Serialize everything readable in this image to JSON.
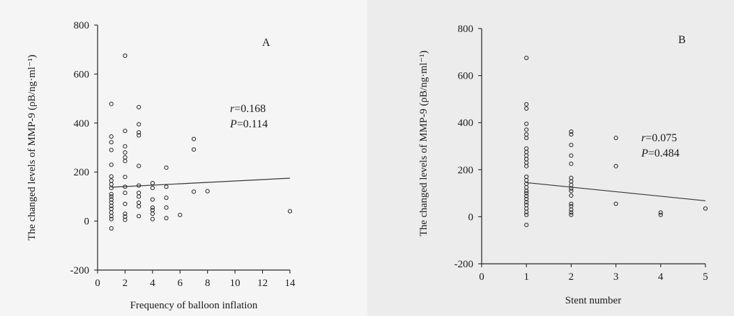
{
  "chart_data": [
    {
      "type": "scatter",
      "panel_label": "A",
      "xlabel": "Frequency of balloon inflation",
      "ylabel": "The changed levels of MMP-9 (ρB/ng·ml⁻¹)",
      "xlim": [
        0,
        14
      ],
      "ylim": [
        -200,
        800
      ],
      "xticks": [
        0,
        2,
        4,
        6,
        8,
        10,
        12,
        14
      ],
      "yticks": [
        -200,
        0,
        200,
        400,
        600,
        800
      ],
      "stats": {
        "r_label": "r",
        "r_value": "=0.168",
        "p_label": "P",
        "p_value": "=0.114"
      },
      "fit_line": {
        "x": [
          1,
          14
        ],
        "y": [
          138,
          175
        ]
      },
      "points": [
        {
          "x": 1,
          "y": 478
        },
        {
          "x": 1,
          "y": 345
        },
        {
          "x": 1,
          "y": 322
        },
        {
          "x": 1,
          "y": 290
        },
        {
          "x": 1,
          "y": 230
        },
        {
          "x": 1,
          "y": 182
        },
        {
          "x": 1,
          "y": 165
        },
        {
          "x": 1,
          "y": 150
        },
        {
          "x": 1,
          "y": 135
        },
        {
          "x": 1,
          "y": 110
        },
        {
          "x": 1,
          "y": 100
        },
        {
          "x": 1,
          "y": 88
        },
        {
          "x": 1,
          "y": 75
        },
        {
          "x": 1,
          "y": 62
        },
        {
          "x": 1,
          "y": 50
        },
        {
          "x": 1,
          "y": 35
        },
        {
          "x": 1,
          "y": 20
        },
        {
          "x": 1,
          "y": 8
        },
        {
          "x": 1,
          "y": -30
        },
        {
          "x": 2,
          "y": 675
        },
        {
          "x": 2,
          "y": 368
        },
        {
          "x": 2,
          "y": 305
        },
        {
          "x": 2,
          "y": 280
        },
        {
          "x": 2,
          "y": 260
        },
        {
          "x": 2,
          "y": 245
        },
        {
          "x": 2,
          "y": 180
        },
        {
          "x": 2,
          "y": 140
        },
        {
          "x": 2,
          "y": 115
        },
        {
          "x": 2,
          "y": 70
        },
        {
          "x": 2,
          "y": 30
        },
        {
          "x": 2,
          "y": 18
        },
        {
          "x": 2,
          "y": 5
        },
        {
          "x": 3,
          "y": 465
        },
        {
          "x": 3,
          "y": 395
        },
        {
          "x": 3,
          "y": 362
        },
        {
          "x": 3,
          "y": 350
        },
        {
          "x": 3,
          "y": 225
        },
        {
          "x": 3,
          "y": 145
        },
        {
          "x": 3,
          "y": 115
        },
        {
          "x": 3,
          "y": 100
        },
        {
          "x": 3,
          "y": 75
        },
        {
          "x": 3,
          "y": 60
        },
        {
          "x": 3,
          "y": 20
        },
        {
          "x": 4,
          "y": 155
        },
        {
          "x": 4,
          "y": 135
        },
        {
          "x": 4,
          "y": 88
        },
        {
          "x": 4,
          "y": 55
        },
        {
          "x": 4,
          "y": 45
        },
        {
          "x": 4,
          "y": 30
        },
        {
          "x": 4,
          "y": 8
        },
        {
          "x": 5,
          "y": 218
        },
        {
          "x": 5,
          "y": 140
        },
        {
          "x": 5,
          "y": 95
        },
        {
          "x": 5,
          "y": 55
        },
        {
          "x": 5,
          "y": 12
        },
        {
          "x": 6,
          "y": 25
        },
        {
          "x": 7,
          "y": 335
        },
        {
          "x": 7,
          "y": 292
        },
        {
          "x": 7,
          "y": 120
        },
        {
          "x": 8,
          "y": 122
        },
        {
          "x": 14,
          "y": 40
        }
      ]
    },
    {
      "type": "scatter",
      "panel_label": "B",
      "xlabel": "Stent number",
      "ylabel": "The changed levels of MMP-9 (ρB/ng·ml⁻¹)",
      "xlim": [
        0,
        5
      ],
      "ylim": [
        -200,
        800
      ],
      "xticks": [
        0,
        1,
        2,
        3,
        4,
        5
      ],
      "yticks": [
        -200,
        0,
        200,
        400,
        600,
        800
      ],
      "stats": {
        "r_label": "r",
        "r_value": "=0.075",
        "p_label": "P",
        "p_value": "=0.484"
      },
      "fit_line": {
        "x": [
          1,
          5
        ],
        "y": [
          145,
          68
        ]
      },
      "points": [
        {
          "x": 1,
          "y": 675
        },
        {
          "x": 1,
          "y": 478
        },
        {
          "x": 1,
          "y": 460
        },
        {
          "x": 1,
          "y": 395
        },
        {
          "x": 1,
          "y": 370
        },
        {
          "x": 1,
          "y": 350
        },
        {
          "x": 1,
          "y": 335
        },
        {
          "x": 1,
          "y": 290
        },
        {
          "x": 1,
          "y": 275
        },
        {
          "x": 1,
          "y": 260
        },
        {
          "x": 1,
          "y": 245
        },
        {
          "x": 1,
          "y": 230
        },
        {
          "x": 1,
          "y": 215
        },
        {
          "x": 1,
          "y": 170
        },
        {
          "x": 1,
          "y": 155
        },
        {
          "x": 1,
          "y": 140
        },
        {
          "x": 1,
          "y": 125
        },
        {
          "x": 1,
          "y": 110
        },
        {
          "x": 1,
          "y": 100
        },
        {
          "x": 1,
          "y": 88
        },
        {
          "x": 1,
          "y": 75
        },
        {
          "x": 1,
          "y": 62
        },
        {
          "x": 1,
          "y": 50
        },
        {
          "x": 1,
          "y": 35
        },
        {
          "x": 1,
          "y": 20
        },
        {
          "x": 1,
          "y": 8
        },
        {
          "x": 1,
          "y": -35
        },
        {
          "x": 2,
          "y": 362
        },
        {
          "x": 2,
          "y": 350
        },
        {
          "x": 2,
          "y": 305
        },
        {
          "x": 2,
          "y": 260
        },
        {
          "x": 2,
          "y": 225
        },
        {
          "x": 2,
          "y": 165
        },
        {
          "x": 2,
          "y": 150
        },
        {
          "x": 2,
          "y": 135
        },
        {
          "x": 2,
          "y": 120
        },
        {
          "x": 2,
          "y": 110
        },
        {
          "x": 2,
          "y": 90
        },
        {
          "x": 2,
          "y": 55
        },
        {
          "x": 2,
          "y": 45
        },
        {
          "x": 2,
          "y": 30
        },
        {
          "x": 2,
          "y": 18
        },
        {
          "x": 2,
          "y": 8
        },
        {
          "x": 3,
          "y": 335
        },
        {
          "x": 3,
          "y": 215
        },
        {
          "x": 3,
          "y": 55
        },
        {
          "x": 4,
          "y": 18
        },
        {
          "x": 4,
          "y": 8
        },
        {
          "x": 5,
          "y": 35
        }
      ]
    }
  ]
}
